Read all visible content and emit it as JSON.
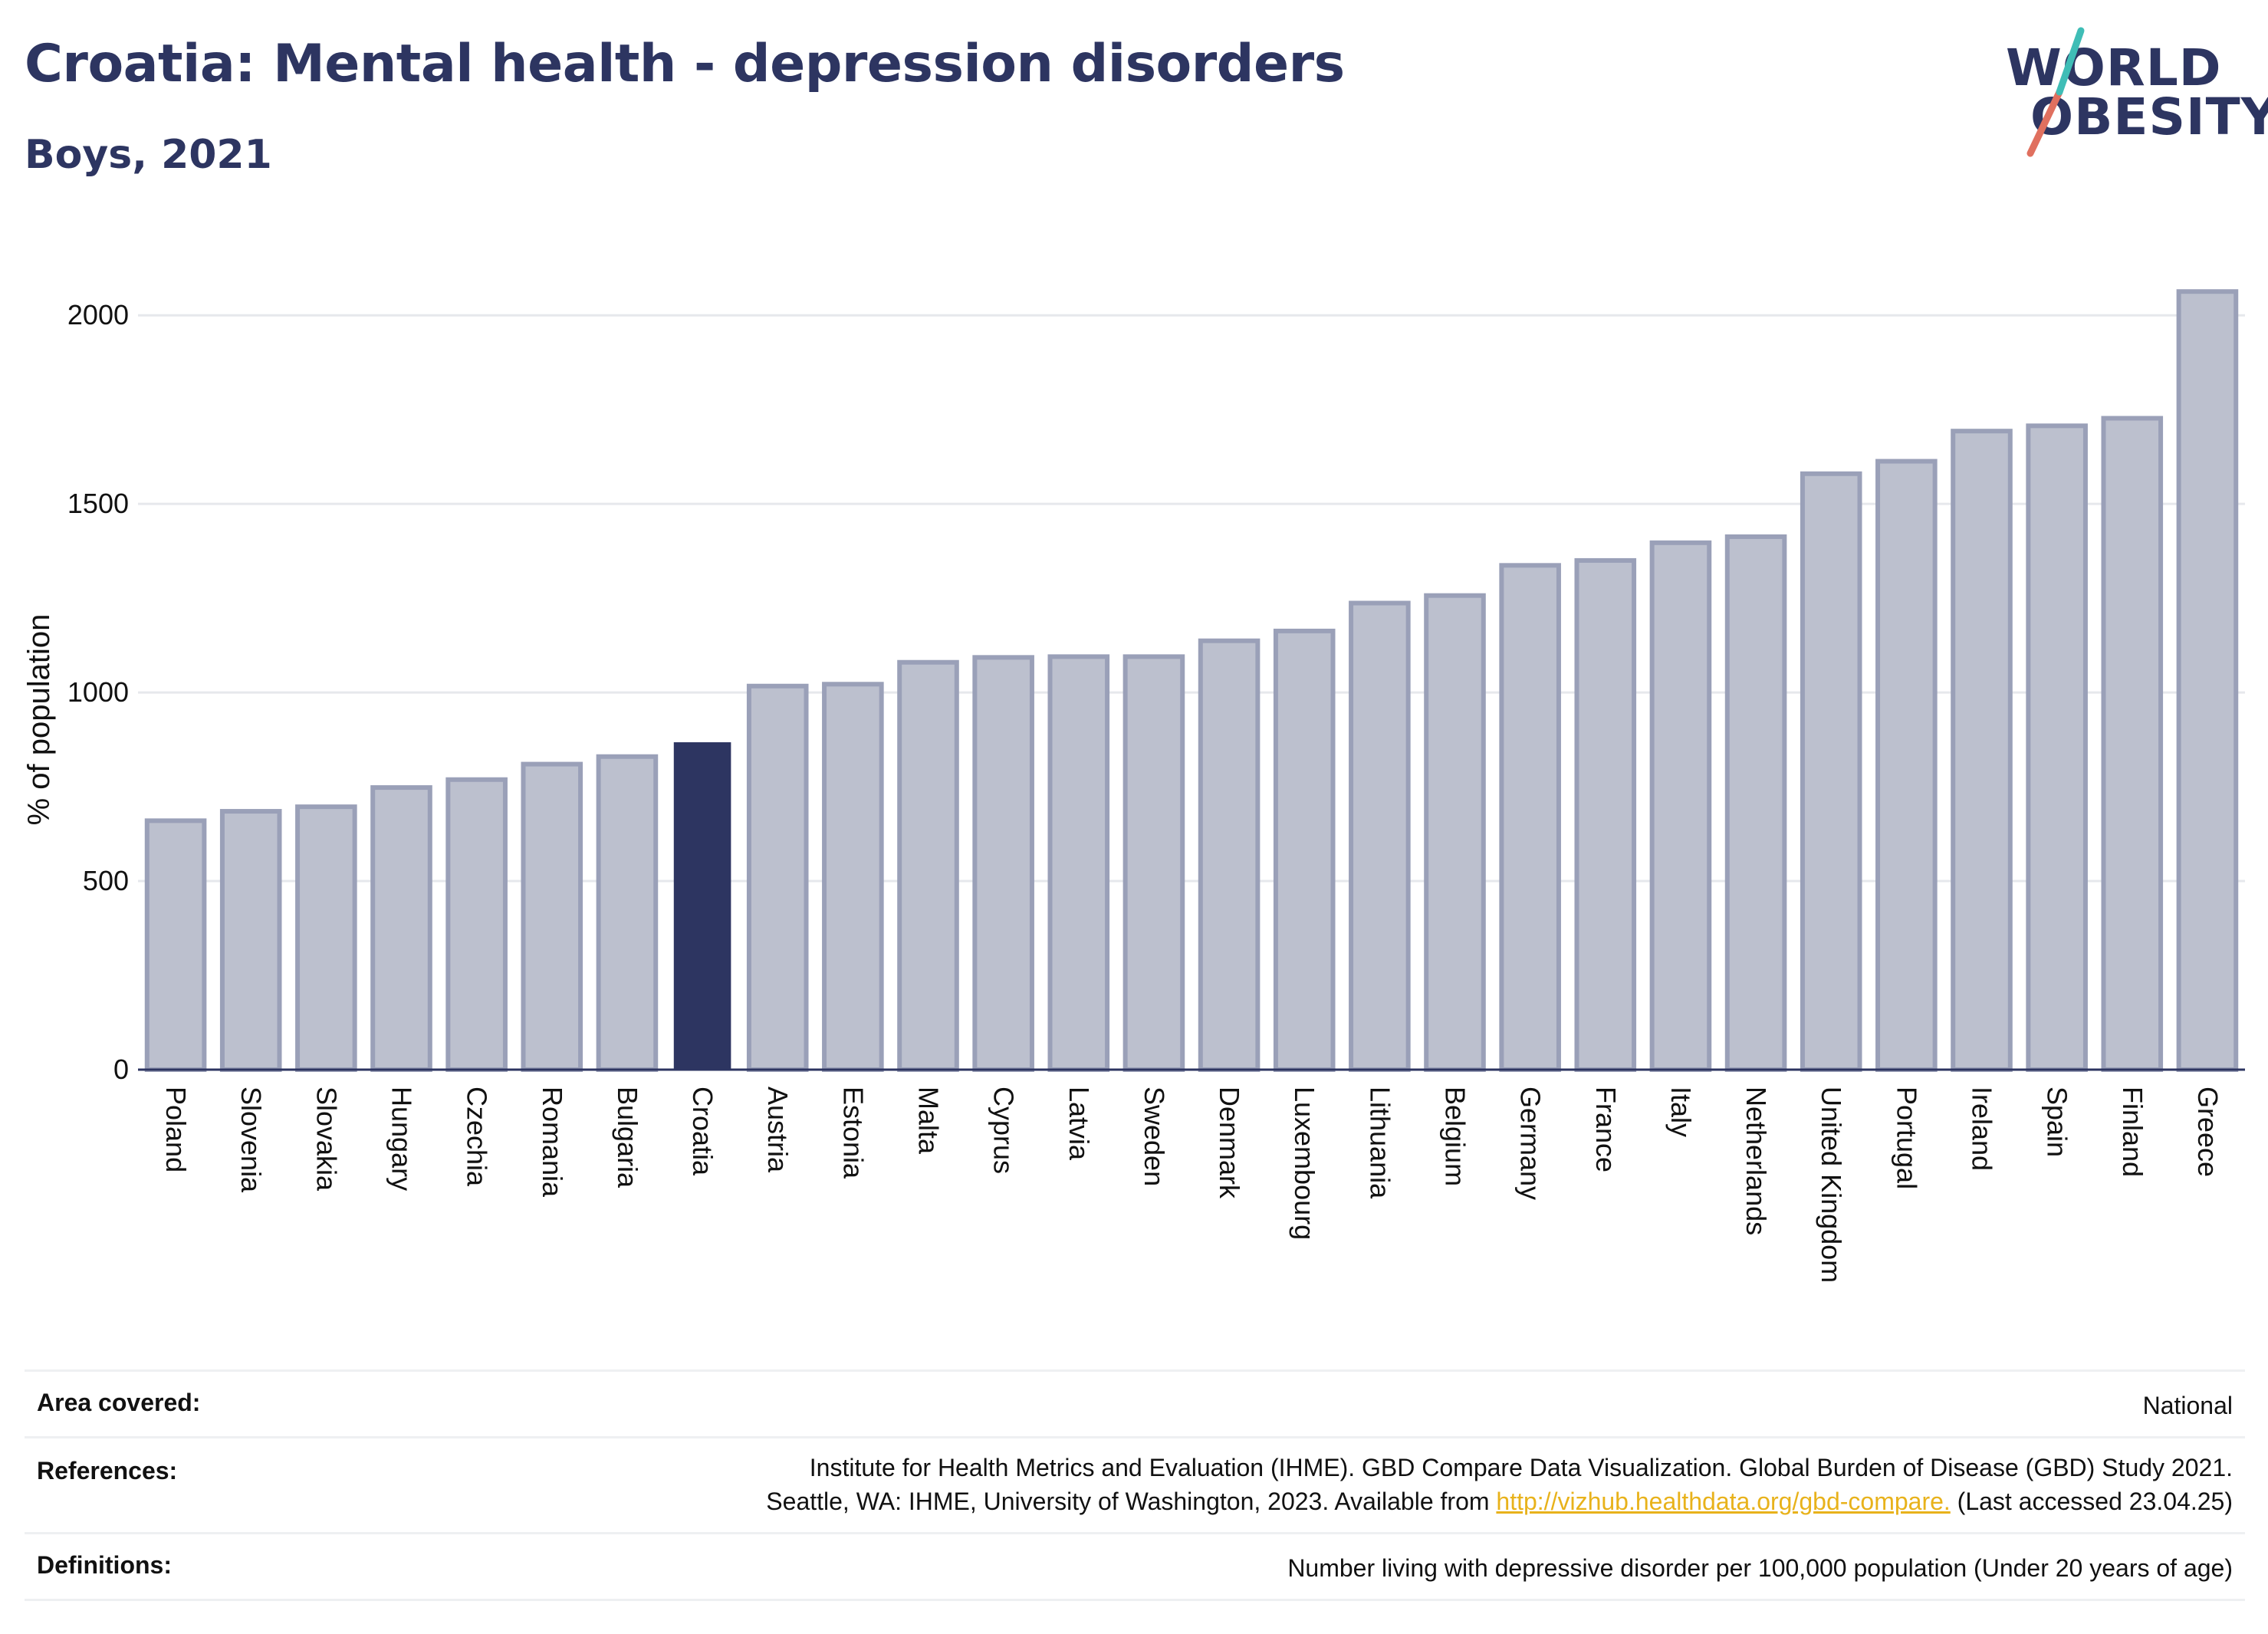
{
  "header": {
    "title": "Croatia: Mental health - depression disorders",
    "subtitle": "Boys, 2021"
  },
  "logo": {
    "line1": "WORLD",
    "line2": "OBESITY",
    "icon": "world-obesity-slash-logo"
  },
  "colors": {
    "highlight": "#2d3561",
    "bar_fill": "#bcc0ce",
    "bar_stroke": "#9aa0b8",
    "grid": "#e6e8ec",
    "link": "#e8b21b"
  },
  "chart_data": {
    "type": "bar",
    "title": "Croatia: Mental health - depression disorders",
    "subtitle": "Boys, 2021",
    "xlabel": "",
    "ylabel": "% of population",
    "ylim": [
      0,
      2100
    ],
    "yticks": [
      0,
      500,
      1000,
      1500,
      2000
    ],
    "grid": true,
    "highlight": "Croatia",
    "categories": [
      "Poland",
      "Slovenia",
      "Slovakia",
      "Hungary",
      "Czechia",
      "Romania",
      "Bulgaria",
      "Croatia",
      "Austria",
      "Estonia",
      "Malta",
      "Cyprus",
      "Latvia",
      "Sweden",
      "Denmark",
      "Luxembourg",
      "Lithuania",
      "Belgium",
      "Germany",
      "France",
      "Italy",
      "Netherlands",
      "United Kingdom",
      "Portugal",
      "Ireland",
      "Spain",
      "Finland",
      "Greece"
    ],
    "values": [
      660,
      685,
      697,
      748,
      769,
      810,
      830,
      868,
      1017,
      1022,
      1080,
      1093,
      1095,
      1095,
      1137,
      1163,
      1237,
      1257,
      1337,
      1350,
      1397,
      1413,
      1580,
      1613,
      1693,
      1707,
      1727,
      2063
    ]
  },
  "footer": {
    "area_label": "Area covered:",
    "area_value": "National",
    "references_label": "References:",
    "references_line1": "Institute for Health Metrics and Evaluation (IHME). GBD Compare Data Visualization. Global Burden of Disease (GBD) Study 2021.",
    "references_line2_prefix": "Seattle, WA: IHME, University of Washington, 2023. Available from ",
    "references_link": "http://vizhub.healthdata.org/gbd-compare.",
    "references_line2_suffix": " (Last accessed 23.04.25)",
    "definitions_label": "Definitions:",
    "definitions_value": "Number living with depressive disorder per 100,000 population (Under 20 years of age)"
  }
}
